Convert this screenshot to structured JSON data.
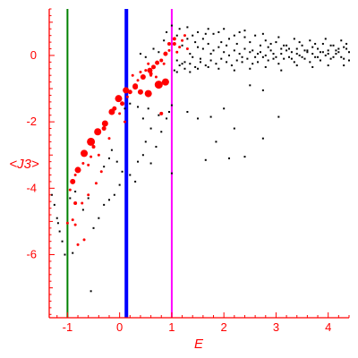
{
  "chart_data": {
    "type": "scatter",
    "title": "",
    "xlabel": "E",
    "ylabel": "<J3>",
    "xlim": [
      -1.35,
      4.4
    ],
    "ylim": [
      -7.9,
      1.4
    ],
    "x_ticks": [
      -1,
      0,
      1,
      2,
      3,
      4
    ],
    "y_ticks": [
      0,
      -2,
      -4,
      -6
    ],
    "grid": false,
    "legend": "none",
    "colors": {
      "axes": "#ff0000",
      "highlighted_points": "#ff0000",
      "background_points": "#000000",
      "line_green": "#008000",
      "line_blue": "#0000ff",
      "line_magenta": "#ff00ff"
    },
    "vertical_lines": [
      {
        "x": -1.0,
        "color": "#008000"
      },
      {
        "x": 0.13,
        "color": "#0000ff"
      },
      {
        "x": 1.0,
        "color": "#ff00ff"
      }
    ],
    "series": [
      {
        "color": "#ff0000",
        "points": [
          [
            -0.55,
            -2.6,
            4.5
          ],
          [
            -0.42,
            -2.3,
            4
          ],
          [
            -0.28,
            -2.05,
            3.5
          ],
          [
            -0.15,
            -1.7,
            3.5
          ],
          [
            -0.02,
            -1.3,
            4
          ],
          [
            0.12,
            -1.05,
            3.5
          ],
          [
            0.3,
            -0.92,
            3
          ],
          [
            0.45,
            -0.65,
            3
          ],
          [
            0.58,
            -0.45,
            3
          ],
          [
            0.72,
            -0.22,
            2.5
          ],
          [
            0.88,
            0.05,
            2.5
          ],
          [
            1.05,
            0.35,
            2
          ],
          [
            -0.68,
            -2.95,
            4
          ],
          [
            -0.8,
            -3.45,
            3.5
          ],
          [
            -0.9,
            -3.8,
            3
          ],
          [
            0.75,
            -0.88,
            4.5
          ],
          [
            0.88,
            -0.8,
            4
          ],
          [
            0.55,
            -1.15,
            4
          ],
          [
            0.4,
            -1.1,
            3
          ],
          [
            0.3,
            -0.95,
            3
          ],
          [
            0.2,
            -1.1,
            2.5
          ],
          [
            -0.3,
            -2.2,
            2.5
          ],
          [
            -0.1,
            -1.6,
            2.5
          ],
          [
            0.05,
            -1.45,
            2.5
          ],
          [
            0.65,
            -0.35,
            2.5
          ],
          [
            0.95,
            0.35,
            2
          ],
          [
            1.05,
            0.5,
            2
          ],
          [
            1.25,
            0.6,
            1.5
          ],
          [
            1.15,
            0.25,
            1.5
          ],
          [
            0.8,
            -0.15,
            2
          ],
          [
            0.6,
            -0.55,
            2
          ],
          [
            -0.5,
            -2.75,
            2
          ],
          [
            -0.7,
            -3.25,
            1.5
          ],
          [
            -0.85,
            -3.6,
            1.5
          ],
          [
            -0.95,
            -4.05,
            1.5
          ],
          [
            -0.85,
            -4.45,
            2
          ],
          [
            -0.72,
            -4.45,
            1.5
          ],
          [
            -0.6,
            -4.2,
            1.5
          ],
          [
            -0.45,
            -3.85,
            1.5
          ],
          [
            -0.35,
            -3.5,
            1.5
          ],
          [
            -1.0,
            -5.05,
            1.5
          ],
          [
            -0.85,
            -5.1,
            1.5
          ],
          [
            -0.8,
            -5.7,
            1.5
          ],
          [
            -0.68,
            -5.55,
            1.5
          ],
          [
            -0.9,
            -4.95,
            1.5
          ],
          [
            -0.4,
            -3.0,
            1.5
          ],
          [
            -0.2,
            -2.5,
            1.5
          ],
          [
            0.15,
            -1.25,
            1.5
          ],
          [
            0.35,
            -0.75,
            1.5
          ],
          [
            0.5,
            -0.45,
            1.5
          ],
          [
            0.7,
            -0.65,
            1.5
          ],
          [
            1.1,
            0.1,
            1.5
          ],
          [
            1.2,
            0.45,
            1.5
          ],
          [
            1.3,
            0.2,
            1.5
          ],
          [
            0.95,
            0.15,
            1.5
          ],
          [
            0.6,
            -0.6,
            1.5
          ],
          [
            0.4,
            -0.5,
            1.5
          ],
          [
            0.25,
            -0.6,
            1.5
          ],
          [
            0.55,
            -0.25,
            1.5
          ],
          [
            0.85,
            -0.25,
            1.5
          ],
          [
            0.0,
            -1.75,
            1.5
          ],
          [
            0.1,
            -2.0,
            1.5
          ],
          [
            0.8,
            -1.75,
            2
          ],
          [
            -0.6,
            -3.3,
            1.5
          ],
          [
            -0.55,
            -3.05,
            1.5
          ]
        ]
      },
      {
        "color": "#000000",
        "points": [
          [
            -1.3,
            -4.2
          ],
          [
            -1.25,
            -4.5
          ],
          [
            -1.2,
            -4.9
          ],
          [
            -1.15,
            -5.3
          ],
          [
            -1.1,
            -5.6
          ],
          [
            -1.05,
            -6.0
          ],
          [
            -1.18,
            -5.05
          ],
          [
            -0.95,
            -4.3
          ],
          [
            -0.85,
            -4.1
          ],
          [
            -0.9,
            -5.95
          ],
          [
            -0.7,
            -4.65
          ],
          [
            -0.6,
            -4.3
          ],
          [
            -0.5,
            -5.2
          ],
          [
            -0.4,
            -4.9
          ],
          [
            -0.3,
            -4.5
          ],
          [
            -0.2,
            -4.35
          ],
          [
            -0.1,
            -4.2
          ],
          [
            0.0,
            -3.9
          ],
          [
            0.05,
            -3.5
          ],
          [
            -0.05,
            -3.2
          ],
          [
            -0.2,
            -3.1
          ],
          [
            -0.3,
            -3.35
          ],
          [
            0.2,
            -3.6
          ],
          [
            0.3,
            -3.8
          ],
          [
            0.35,
            -3.2
          ],
          [
            0.45,
            -3.0
          ],
          [
            0.5,
            -2.6
          ],
          [
            0.6,
            -2.2
          ],
          [
            0.6,
            -3.25
          ],
          [
            0.7,
            -2.75
          ],
          [
            0.8,
            -2.3
          ],
          [
            0.9,
            -1.9
          ],
          [
            0.95,
            -1.7
          ],
          [
            1.0,
            -1.5
          ],
          [
            0.75,
            -1.8
          ],
          [
            0.55,
            -1.6
          ],
          [
            0.45,
            -1.9
          ],
          [
            0.35,
            -1.55
          ],
          [
            0.2,
            -1.45
          ],
          [
            1.3,
            -1.7
          ],
          [
            1.5,
            -1.9
          ],
          [
            1.75,
            -1.85
          ],
          [
            2.0,
            -1.6
          ],
          [
            1.85,
            -2.6
          ],
          [
            2.2,
            -2.2
          ],
          [
            2.5,
            -0.9
          ],
          [
            2.75,
            -1.05
          ],
          [
            3.05,
            -1.85
          ],
          [
            2.75,
            -2.5
          ],
          [
            2.1,
            -3.1
          ],
          [
            2.4,
            -3.05
          ],
          [
            1.65,
            -3.15
          ],
          [
            1.0,
            -3.55
          ],
          [
            -0.55,
            -7.1
          ],
          [
            0.1,
            -1.6
          ],
          [
            -0.15,
            -2.85
          ],
          [
            1.1,
            -0.5
          ],
          [
            1.25,
            -0.2
          ],
          [
            1.4,
            -0.05
          ],
          [
            1.5,
            0.25
          ],
          [
            1.6,
            0.5
          ],
          [
            1.7,
            0.8
          ],
          [
            1.8,
            0.65
          ],
          [
            1.9,
            0.7
          ],
          [
            2.0,
            0.8
          ],
          [
            2.1,
            0.5
          ],
          [
            2.2,
            0.6
          ],
          [
            2.3,
            0.7
          ],
          [
            2.4,
            0.55
          ],
          [
            2.5,
            0.4
          ],
          [
            2.6,
            0.6
          ],
          [
            2.7,
            0.3
          ],
          [
            2.8,
            0.45
          ],
          [
            2.9,
            0.35
          ],
          [
            3.0,
            0.4
          ],
          [
            3.1,
            0.2
          ],
          [
            3.2,
            0.3
          ],
          [
            3.3,
            0.1
          ],
          [
            3.4,
            0.2
          ],
          [
            3.5,
            0.3
          ],
          [
            3.6,
            0.1
          ],
          [
            3.7,
            0.25
          ],
          [
            3.8,
            0.2
          ],
          [
            3.9,
            0.35
          ],
          [
            4.0,
            0.15
          ],
          [
            4.1,
            0.3
          ],
          [
            4.2,
            0.1
          ],
          [
            4.3,
            0.25
          ],
          [
            4.4,
            0.1
          ],
          [
            4.35,
            0.35
          ],
          [
            4.25,
            -0.05
          ],
          [
            4.15,
            0.05
          ],
          [
            4.05,
            -0.1
          ],
          [
            3.95,
            0.0
          ],
          [
            3.85,
            -0.15
          ],
          [
            3.75,
            -0.05
          ],
          [
            3.65,
            -0.2
          ],
          [
            3.55,
            -0.1
          ],
          [
            3.45,
            0.0
          ],
          [
            3.35,
            -0.2
          ],
          [
            3.25,
            -0.05
          ],
          [
            3.15,
            -0.1
          ],
          [
            3.05,
            -0.25
          ],
          [
            2.95,
            -0.1
          ],
          [
            2.85,
            -0.15
          ],
          [
            2.75,
            -0.05
          ],
          [
            2.65,
            -0.2
          ],
          [
            2.55,
            -0.25
          ],
          [
            2.45,
            -0.1
          ],
          [
            2.35,
            -0.2
          ],
          [
            2.25,
            -0.15
          ],
          [
            2.15,
            -0.3
          ],
          [
            2.05,
            -0.2
          ],
          [
            1.95,
            -0.1
          ],
          [
            1.85,
            -0.25
          ],
          [
            1.75,
            -0.15
          ],
          [
            1.65,
            -0.3
          ],
          [
            1.55,
            -0.1
          ],
          [
            1.45,
            -0.35
          ],
          [
            1.35,
            -0.25
          ],
          [
            1.25,
            -0.4
          ],
          [
            1.15,
            -0.3
          ],
          [
            1.05,
            -0.45
          ],
          [
            1.2,
            0.3
          ],
          [
            1.3,
            0.5
          ],
          [
            1.4,
            0.6
          ],
          [
            1.5,
            0.7
          ],
          [
            1.6,
            0.2
          ],
          [
            1.7,
            0.35
          ],
          [
            1.8,
            0.15
          ],
          [
            1.9,
            0.25
          ],
          [
            2.0,
            0.1
          ],
          [
            2.1,
            0.0
          ],
          [
            2.2,
            0.15
          ],
          [
            2.3,
            0.05
          ],
          [
            2.4,
            0.2
          ],
          [
            2.5,
            0.1
          ],
          [
            2.6,
            -0.05
          ],
          [
            2.7,
            0.1
          ],
          [
            2.8,
            0.0
          ],
          [
            2.9,
            0.15
          ],
          [
            3.0,
            -0.05
          ],
          [
            3.1,
            0.05
          ],
          [
            3.2,
            0.15
          ],
          [
            3.3,
            -0.1
          ],
          [
            3.4,
            0.05
          ],
          [
            3.5,
            -0.05
          ],
          [
            3.6,
            0.15
          ],
          [
            3.7,
            0.05
          ],
          [
            3.8,
            -0.05
          ],
          [
            3.9,
            0.1
          ],
          [
            4.0,
            0.05
          ],
          [
            4.1,
            -0.05
          ],
          [
            4.2,
            0.2
          ],
          [
            4.3,
            -0.1
          ],
          [
            4.4,
            -0.15
          ],
          [
            1.1,
            0.6
          ],
          [
            1.3,
            0.85
          ],
          [
            1.45,
            0.4
          ],
          [
            1.65,
            0.65
          ],
          [
            1.95,
            0.4
          ],
          [
            2.25,
            0.35
          ],
          [
            2.55,
            0.15
          ],
          [
            2.85,
            0.25
          ],
          [
            3.15,
            0.3
          ],
          [
            3.45,
            0.4
          ],
          [
            3.75,
            0.35
          ],
          [
            4.05,
            0.3
          ],
          [
            4.35,
            0.2
          ],
          [
            1.15,
            0.8
          ],
          [
            1.35,
            0.05
          ],
          [
            1.55,
            -0.2
          ],
          [
            1.75,
            0.05
          ],
          [
            2.05,
            0.3
          ],
          [
            2.35,
            -0.05
          ],
          [
            2.65,
            0.05
          ],
          [
            2.95,
            0.05
          ],
          [
            3.25,
            0.2
          ],
          [
            3.55,
            0.15
          ],
          [
            3.85,
            0.1
          ],
          [
            4.15,
            0.15
          ],
          [
            1.0,
            0.9
          ],
          [
            0.9,
            0.7
          ],
          [
            0.85,
            0.45
          ],
          [
            1.1,
            -0.15
          ],
          [
            1.2,
            -0.25
          ],
          [
            1.35,
            -0.5
          ],
          [
            1.5,
            -0.4
          ],
          [
            1.7,
            -0.35
          ],
          [
            1.9,
            -0.4
          ],
          [
            2.2,
            -0.45
          ],
          [
            2.5,
            -0.4
          ],
          [
            2.8,
            -0.35
          ],
          [
            3.1,
            -0.45
          ],
          [
            3.4,
            -0.3
          ],
          [
            3.7,
            -0.35
          ],
          [
            4.0,
            -0.3
          ],
          [
            4.3,
            -0.3
          ],
          [
            2.4,
            0.75
          ],
          [
            2.75,
            0.65
          ],
          [
            3.05,
            0.55
          ],
          [
            3.35,
            0.5
          ],
          [
            3.65,
            0.45
          ],
          [
            3.95,
            0.5
          ],
          [
            4.25,
            0.45
          ],
          [
            0.5,
            -0.05
          ],
          [
            0.4,
            0.05
          ],
          [
            0.65,
            0.2
          ],
          [
            0.75,
            0.1
          ]
        ]
      }
    ]
  }
}
